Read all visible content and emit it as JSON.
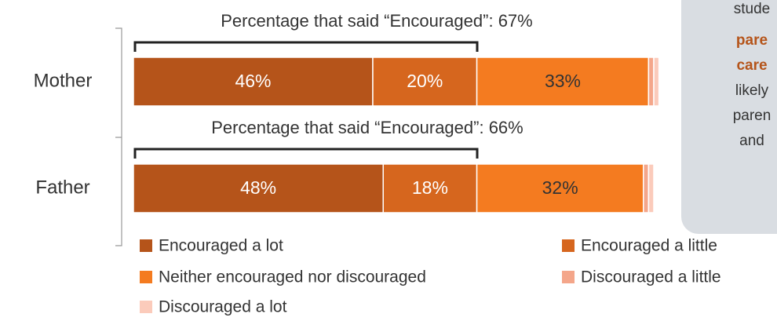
{
  "chart_data": {
    "type": "bar",
    "orientation": "horizontal",
    "stacked": true,
    "categories": [
      "Mother",
      "Father"
    ],
    "series": [
      {
        "name": "Encouraged a lot",
        "color": "#b5541a",
        "values": [
          46,
          48
        ],
        "value_labels": [
          "46%",
          "48%"
        ]
      },
      {
        "name": "Encouraged a little",
        "color": "#d6661e",
        "values": [
          20,
          18
        ],
        "value_labels": [
          "20%",
          "18%"
        ]
      },
      {
        "name": "Neither encouraged nor discouraged",
        "color": "#f47b20",
        "values": [
          33,
          32
        ],
        "value_labels": [
          "33%",
          "32%"
        ]
      },
      {
        "name": "Discouraged a little",
        "color": "#f4a68a",
        "values": [
          1,
          1
        ]
      },
      {
        "name": "Discouraged a lot",
        "color": "#fbcbbb",
        "values": [
          1,
          1
        ]
      }
    ],
    "annotations": [
      "Percentage that said “Encouraged”: 67%",
      "Percentage that said “Encouraged”: 66%"
    ]
  },
  "side_note": {
    "lines": [
      {
        "text": "stude",
        "bold": false
      },
      {
        "text": "pare",
        "bold": true
      },
      {
        "text": "care",
        "bold": true
      },
      {
        "text": "likely",
        "bold": false
      },
      {
        "text": "paren",
        "bold": false
      },
      {
        "text": "and",
        "bold": false
      }
    ]
  }
}
